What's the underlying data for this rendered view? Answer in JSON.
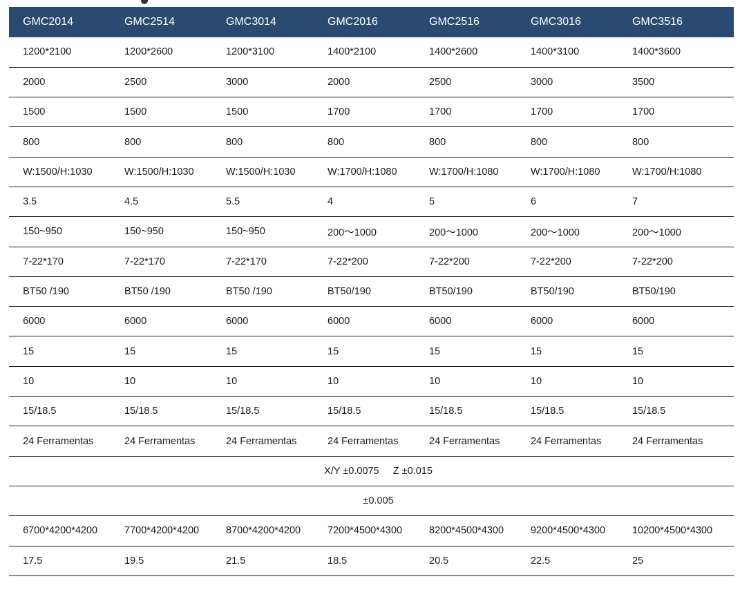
{
  "headers": [
    "GMC2014",
    "GMC2514",
    "GMC3014",
    "GMC2016",
    "GMC2516",
    "GMC3016",
    "GMC3516"
  ],
  "rows": [
    {
      "cells": [
        "1200*2100",
        "1200*2600",
        "1200*3100",
        "1400*2100",
        "1400*2600",
        "1400*3100",
        "1400*3600"
      ]
    },
    {
      "cells": [
        "2000",
        "2500",
        "3000",
        "2000",
        "2500",
        "3000",
        "3500"
      ]
    },
    {
      "cells": [
        "1500",
        "1500",
        "1500",
        "1700",
        "1700",
        "1700",
        "1700"
      ]
    },
    {
      "cells": [
        "800",
        "800",
        "800",
        "800",
        "800",
        "800",
        "800"
      ]
    },
    {
      "cells": [
        "W:1500/H:1030",
        "W:1500/H:1030",
        "W:1500/H:1030",
        "W:1700/H:1080",
        "W:1700/H:1080",
        "W:1700/H:1080",
        "W:1700/H:1080"
      ]
    },
    {
      "cells": [
        "3.5",
        "4.5",
        "5.5",
        "4",
        "5",
        "6",
        "7"
      ]
    },
    {
      "cells": [
        "150~950",
        "150~950",
        "150~950",
        "200～1000",
        "200～1000",
        "200～1000",
        "200～1000"
      ]
    },
    {
      "cells": [
        "7-22*170",
        "7-22*170",
        "7-22*170",
        "7-22*200",
        "7-22*200",
        "7-22*200",
        "7-22*200"
      ]
    },
    {
      "cells": [
        "BT50 /190",
        "BT50 /190",
        "BT50 /190",
        "BT50/190",
        "BT50/190",
        "BT50/190",
        "BT50/190"
      ]
    },
    {
      "cells": [
        "6000",
        "6000",
        "6000",
        "6000",
        "6000",
        "6000",
        "6000"
      ]
    },
    {
      "cells": [
        "15",
        "15",
        "15",
        "15",
        "15",
        "15",
        "15"
      ]
    },
    {
      "cells": [
        "10",
        "10",
        "10",
        "10",
        "10",
        "10",
        "10"
      ]
    },
    {
      "cells": [
        "15/18.5",
        "15/18.5",
        "15/18.5",
        "15/18.5",
        "15/18.5",
        "15/18.5",
        "15/18.5"
      ]
    },
    {
      "cells": [
        "24 Ferramentas",
        "24 Ferramentas",
        "24 Ferramentas",
        "24 Ferramentas",
        "24 Ferramentas",
        "24 Ferramentas",
        "24 Ferramentas"
      ]
    },
    {
      "span": "X/Y ±0.0075     Z ±0.015"
    },
    {
      "span": "±0.005"
    },
    {
      "cells": [
        "6700*4200*4200",
        "7700*4200*4200",
        "8700*4200*4200",
        "7200*4500*4300",
        "8200*4500*4300",
        "9200*4500*4300",
        "10200*4500*4300"
      ]
    },
    {
      "cells": [
        "17.5",
        "19.5",
        "21.5",
        "18.5",
        "20.5",
        "22.5",
        "25"
      ]
    }
  ],
  "colors": {
    "header_bg": "#2b4a72",
    "header_text": "#ffffff",
    "row_divider": "#1a1a1a"
  }
}
